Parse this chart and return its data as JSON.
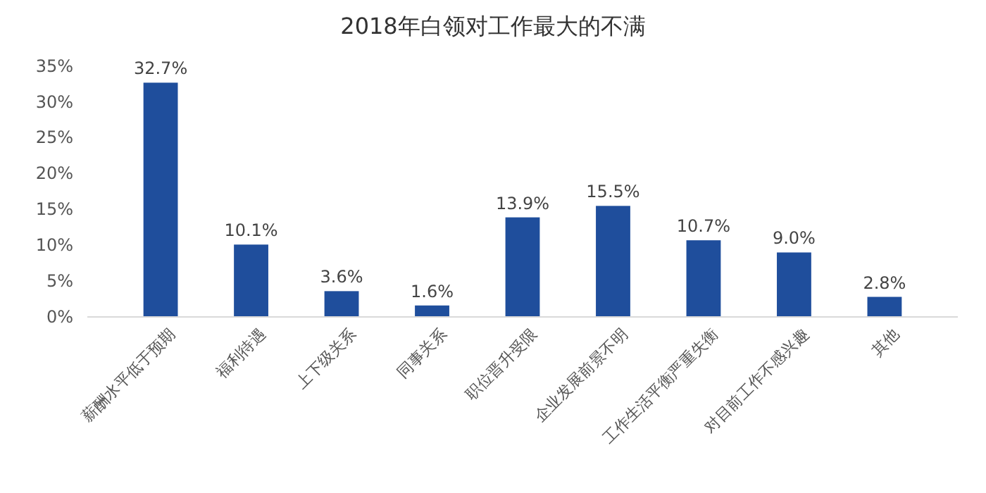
{
  "chart_data": {
    "type": "bar",
    "title": "2018年白领对工作最大的不满",
    "categories": [
      "薪酬水平低于预期",
      "福利待遇",
      "上下级关系",
      "同事关系",
      "职位晋升受限",
      "企业发展前景不明",
      "工作生活平衡严重失衡",
      "对目前工作不感兴趣",
      "其他"
    ],
    "values": [
      32.7,
      10.1,
      3.6,
      1.6,
      13.9,
      15.5,
      10.7,
      9.0,
      2.8
    ],
    "value_labels": [
      "32.7%",
      "10.1%",
      "3.6%",
      "1.6%",
      "13.9%",
      "15.5%",
      "10.7%",
      "9.0%",
      "2.8%"
    ],
    "color": "#1f4e9c",
    "ylim": [
      0,
      35
    ],
    "yticks": [
      {
        "value": 0,
        "label": "0%"
      },
      {
        "value": 5,
        "label": "5%"
      },
      {
        "value": 10,
        "label": "10%"
      },
      {
        "value": 15,
        "label": "15%"
      },
      {
        "value": 20,
        "label": "20%"
      },
      {
        "value": 25,
        "label": "25%"
      },
      {
        "value": 30,
        "label": "30%"
      },
      {
        "value": 35,
        "label": "35%"
      }
    ],
    "grid": false
  }
}
